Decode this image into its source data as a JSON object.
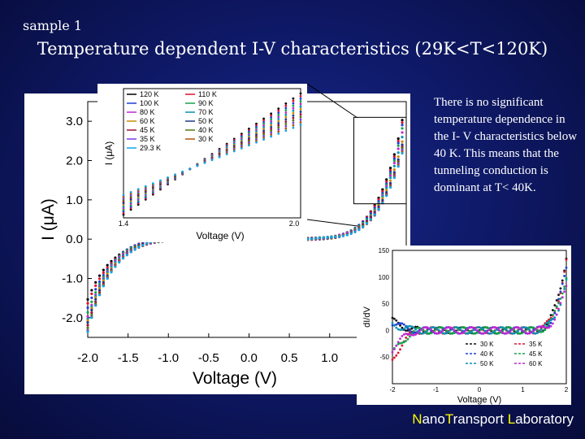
{
  "slide": {
    "label": "sample 1",
    "title": "Temperature dependent I-V characteristics (29K<T<120K)",
    "description": "There is no significant temperature dependence in the I- V characteristics below 40 K. This means that the tunneling conduction is dominant at T< 40K.",
    "lab_name": {
      "n": "N",
      "ano": "ano",
      "t": "T",
      "ransport": "ransport ",
      "l": "L",
      "aboratory": "aboratory"
    },
    "highlight_color": "#ffff00"
  },
  "chart_data": [
    {
      "id": "main",
      "type": "scatter",
      "xlabel": "Voltage (V)",
      "ylabel": "I (μA)",
      "xlim": [
        -2.0,
        1.95
      ],
      "ylim": [
        -2.5,
        3.5
      ],
      "x_ticks": [
        "-2.0",
        "-1.5",
        "-1.0",
        "-0.5",
        "0.0",
        "0.5",
        "1.0"
      ],
      "y_ticks": [
        "3.0",
        "2.0",
        "1.0",
        "0.0",
        "-1.0",
        "-2.0"
      ],
      "series": [
        {
          "name": "120 K",
          "color": "#000000",
          "i_at_1p9V": 3.05,
          "i_at_m2V": -1.55
        },
        {
          "name": "110 K",
          "color": "#e0112b",
          "i_at_1p9V": 2.98,
          "i_at_m2V": -1.65
        },
        {
          "name": "100 K",
          "color": "#1f3fd8",
          "i_at_1p9V": 2.9,
          "i_at_m2V": -1.75
        },
        {
          "name": "90 K",
          "color": "#16a34a",
          "i_at_1p9V": 2.8,
          "i_at_m2V": -1.85
        },
        {
          "name": "80 K",
          "color": "#c026d3",
          "i_at_1p9V": 2.7,
          "i_at_m2V": -1.95
        },
        {
          "name": "70 K",
          "color": "#0891b2",
          "i_at_1p9V": 2.6,
          "i_at_m2V": -2.02
        },
        {
          "name": "60 K",
          "color": "#ca8a04",
          "i_at_1p9V": 2.5,
          "i_at_m2V": -2.08
        },
        {
          "name": "50 K",
          "color": "#1e3a8a",
          "i_at_1p9V": 2.42,
          "i_at_m2V": -2.14
        },
        {
          "name": "45 K",
          "color": "#9f1239",
          "i_at_1p9V": 2.35,
          "i_at_m2V": -2.2
        },
        {
          "name": "40 K",
          "color": "#4d7c0f",
          "i_at_1p9V": 2.3,
          "i_at_m2V": -2.25
        },
        {
          "name": "35 K",
          "color": "#7c3aed",
          "i_at_1p9V": 2.25,
          "i_at_m2V": -2.3
        },
        {
          "name": "30 K",
          "color": "#b45309",
          "i_at_1p9V": 2.22,
          "i_at_m2V": -2.33
        },
        {
          "name": "29.3 K",
          "color": "#0ea5e9",
          "i_at_1p9V": 2.2,
          "i_at_m2V": -2.36
        }
      ]
    },
    {
      "id": "inset-top",
      "type": "scatter",
      "xlabel": "Voltage (V)",
      "ylabel": "I (μA)",
      "x_ticks": [
        "1.4",
        "2.0"
      ],
      "xlim": [
        1.4,
        2.0
      ],
      "legend": [
        "120 K",
        "110 K",
        "100 K",
        "90 K",
        "80 K",
        "70 K",
        "60 K",
        "50 K",
        "45 K",
        "40 K",
        "35 K",
        "30 K",
        "29.3 K"
      ],
      "legend_position": "top-left"
    },
    {
      "id": "inset-bottom",
      "type": "scatter",
      "xlabel": "Voltage (V)",
      "ylabel": "dI/dV",
      "xlim": [
        -2,
        2
      ],
      "ylim": [
        -100,
        150
      ],
      "x_ticks": [
        "-2",
        "-1",
        "0",
        "1",
        "2"
      ],
      "y_ticks": [
        "150",
        "100",
        "50",
        "0",
        "-50"
      ],
      "series": [
        {
          "name": "30 K",
          "color": "#111111"
        },
        {
          "name": "35 K",
          "color": "#e0112b"
        },
        {
          "name": "40 K",
          "color": "#1f3fd8"
        },
        {
          "name": "45 K",
          "color": "#16a34a"
        },
        {
          "name": "50 K",
          "color": "#0891b2"
        },
        {
          "name": "60 K",
          "color": "#c026d3"
        }
      ],
      "legend_position": "bottom-right"
    }
  ]
}
